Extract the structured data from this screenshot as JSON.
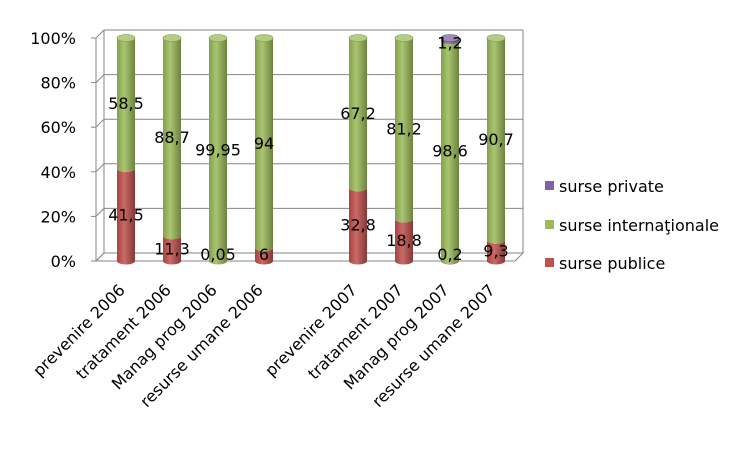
{
  "chart_data": {
    "type": "bar",
    "stacked": true,
    "percent_stacked": true,
    "categories": [
      "prevenire 2006",
      "tratament 2006",
      "Manag  prog 2006",
      "resurse umane 2006",
      "prevenire 2007",
      "tratament 2007",
      "Manag  prog 2007",
      "resurse umane 2007"
    ],
    "series": [
      {
        "name": "surse publice",
        "color": "#c0504d",
        "values": [
          41.5,
          11.3,
          0.05,
          6,
          32.8,
          18.8,
          0.2,
          9.3
        ],
        "labels": [
          "41,5",
          "11,3",
          "0,05",
          "6",
          "32,8",
          "18,8",
          "0,2",
          "9,3"
        ]
      },
      {
        "name": "surse internaţionale",
        "color": "#9bbb59",
        "values": [
          58.5,
          88.7,
          99.95,
          94,
          67.2,
          81.2,
          98.6,
          90.7
        ],
        "labels": [
          "58,5",
          "88,7",
          "99,95",
          "94",
          "67,2",
          "81,2",
          "98,6",
          "90,7"
        ]
      },
      {
        "name": "surse private",
        "color": "#8064a2",
        "values": [
          0,
          0,
          0,
          0,
          0,
          0,
          1.2,
          0
        ],
        "labels": [
          "",
          "",
          "",
          "",
          "",
          "",
          "1,2",
          ""
        ]
      }
    ],
    "y_ticks": [
      "0%",
      "20%",
      "40%",
      "60%",
      "80%",
      "100%"
    ],
    "ylim": [
      0,
      100
    ],
    "grid": true,
    "legend_position": "right",
    "legend_order": [
      "surse private",
      "surse internaţionale",
      "surse publice"
    ]
  }
}
